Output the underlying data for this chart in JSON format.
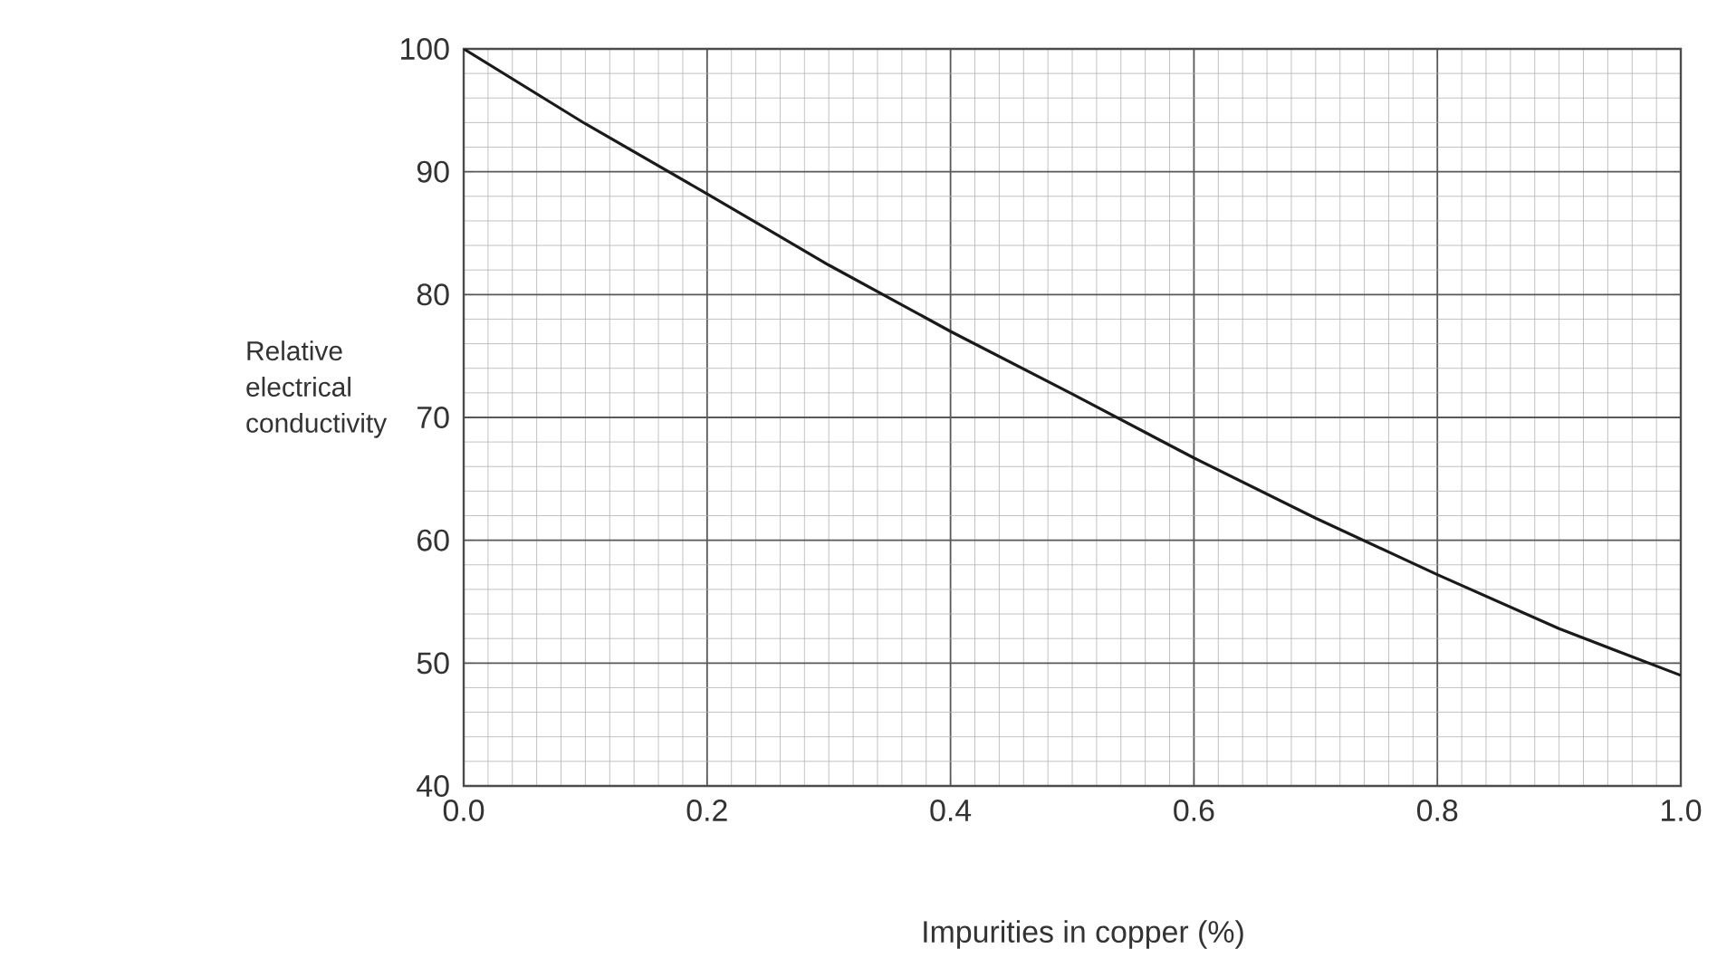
{
  "chart_data": {
    "type": "line",
    "xlabel": "Impurities in copper (%)",
    "ylabel": "Relative electrical conductivity",
    "x": [
      0.0,
      0.1,
      0.2,
      0.3,
      0.4,
      0.5,
      0.6,
      0.7,
      0.8,
      0.9,
      1.0
    ],
    "series": [
      {
        "color": "#1a1a1a",
        "values": [
          100,
          93.9,
          88.2,
          82.4,
          77.0,
          71.9,
          66.7,
          61.8,
          57.2,
          52.8,
          49.0
        ]
      }
    ],
    "xlim": [
      0.0,
      1.0
    ],
    "ylim": [
      40,
      100
    ],
    "xticks": [
      {
        "value": 0.0,
        "label": "0.0"
      },
      0.2,
      0.4,
      0.6,
      0.8,
      {
        "value": 1.0,
        "label": "1.0"
      }
    ],
    "yticks": [
      40,
      50,
      60,
      70,
      80,
      90,
      100
    ],
    "grid": true,
    "marker": "none",
    "line_style": "solid"
  }
}
